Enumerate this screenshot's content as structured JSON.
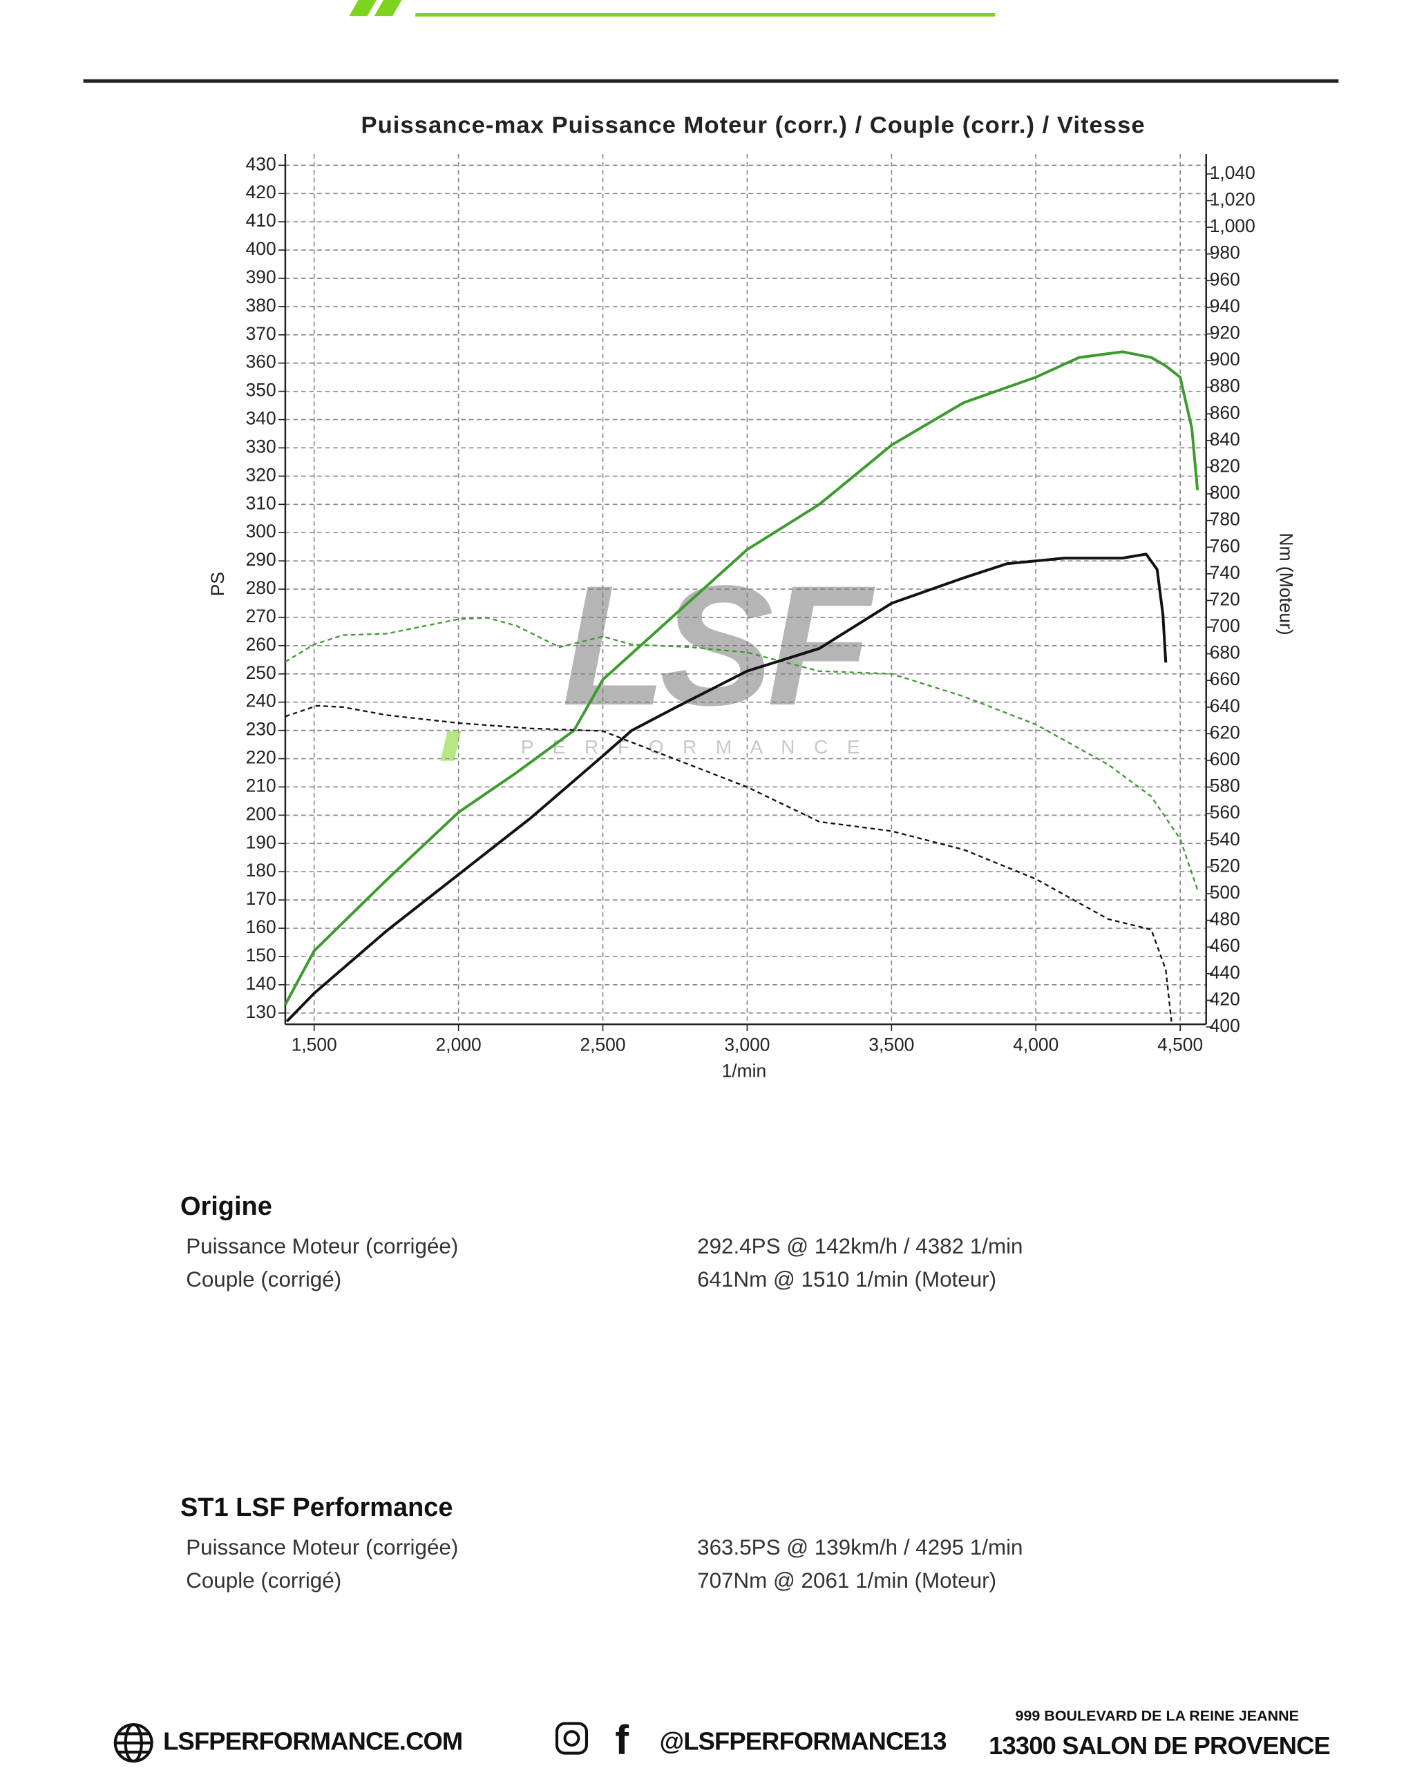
{
  "chart_data": {
    "type": "line",
    "title": "Puissance-max Puissance Moteur (corr.) / Couple (corr.) / Vitesse",
    "xlabel": "1/min",
    "ylabel": "PS",
    "y2label": "Nm (Moteur)",
    "xlim": [
      1400,
      4590
    ],
    "xticks": [
      {
        "value": 1500,
        "label": "1,500"
      },
      {
        "value": 2000,
        "label": "2,000"
      },
      {
        "value": 2500,
        "label": "2,500"
      },
      {
        "value": 3000,
        "label": "3,000"
      },
      {
        "value": 3500,
        "label": "3,500"
      },
      {
        "value": 4000,
        "label": "4,000"
      },
      {
        "value": 4500,
        "label": "4,500"
      }
    ],
    "ylim": [
      126,
      434
    ],
    "yticks": [
      130,
      140,
      150,
      160,
      170,
      180,
      190,
      200,
      210,
      220,
      230,
      240,
      250,
      260,
      270,
      280,
      290,
      300,
      310,
      320,
      330,
      340,
      350,
      360,
      370,
      380,
      390,
      400,
      410,
      420,
      430
    ],
    "y2lim": [
      402,
      1055
    ],
    "y2ticks": [
      400,
      420,
      440,
      460,
      480,
      500,
      520,
      540,
      560,
      580,
      600,
      620,
      640,
      660,
      680,
      700,
      720,
      740,
      760,
      780,
      800,
      820,
      840,
      860,
      880,
      900,
      920,
      940,
      960,
      980,
      {
        "value": 1000,
        "label": "1,000"
      },
      {
        "value": 1020,
        "label": "1,020"
      },
      {
        "value": 1040,
        "label": "1,040"
      }
    ],
    "grid": true,
    "series": [
      {
        "color": "#3c9a2e",
        "style": "solid",
        "axis": "y",
        "x": [
          1400,
          1500,
          1750,
          2000,
          2200,
          2400,
          2500,
          2750,
          3000,
          3250,
          3500,
          3750,
          4000,
          4150,
          4300,
          4400,
          4450,
          4500,
          4540,
          4560
        ],
        "values": [
          133,
          152,
          177,
          201,
          215,
          230,
          248,
          271,
          294,
          310,
          331,
          346,
          355,
          362,
          364,
          362,
          359,
          355,
          337,
          315
        ]
      },
      {
        "color": "#3c9a2e",
        "style": "dashed",
        "axis": "y2",
        "x": [
          1400,
          1500,
          1600,
          1750,
          2000,
          2100,
          2200,
          2350,
          2500,
          2600,
          2800,
          3000,
          3250,
          3500,
          3750,
          4000,
          4250,
          4400,
          4500,
          4560
        ],
        "values": [
          674,
          687,
          694,
          695,
          706,
          707,
          701,
          685,
          693,
          687,
          685,
          681,
          667,
          665,
          648,
          627,
          597,
          573,
          541,
          503
        ]
      },
      {
        "color": "#111111",
        "style": "solid",
        "axis": "y",
        "x": [
          1405,
          1500,
          1750,
          2000,
          2250,
          2500,
          2600,
          2750,
          3000,
          3250,
          3500,
          3750,
          3900,
          4100,
          4300,
          4382,
          4420,
          4440,
          4450
        ],
        "values": [
          127,
          137,
          159,
          179,
          199,
          221,
          230,
          238,
          251,
          259,
          275,
          284,
          289,
          291,
          291,
          292.4,
          287,
          271,
          254
        ]
      },
      {
        "color": "#111111",
        "style": "dashed",
        "axis": "y2",
        "x": [
          1400,
          1510,
          1600,
          1750,
          2000,
          2250,
          2500,
          2750,
          3000,
          3250,
          3500,
          3750,
          4000,
          4250,
          4400,
          4450,
          4470
        ],
        "values": [
          633,
          641,
          640,
          634,
          628,
          624,
          622,
          601,
          580,
          554,
          547,
          533,
          511,
          481,
          473,
          443,
          404
        ]
      }
    ],
    "watermark": {
      "logo": "LSF",
      "tagline": "P E R F O R M A N C E"
    }
  },
  "results": [
    {
      "title": "Origine",
      "rows": [
        [
          "Puissance Moteur (corrigée)",
          "292.4PS @ 142km/h / 4382 1/min"
        ],
        [
          "Couple (corrigé)",
          "641Nm @ 1510 1/min (Moteur)"
        ]
      ]
    },
    {
      "title": "ST1 LSF Performance",
      "rows": [
        [
          "Puissance Moteur (corrigée)",
          "363.5PS @ 139km/h / 4295 1/min"
        ],
        [
          "Couple (corrigé)",
          "707Nm @ 2061 1/min (Moteur)"
        ]
      ]
    }
  ],
  "footer": {
    "website": "LSFPERFORMANCE.COM",
    "social": "@LSFPERFORMANCE13",
    "address_line1": "999 BOULEVARD DE LA REINE JEANNE",
    "address_line2": "13300 SALON DE PROVENCE"
  }
}
